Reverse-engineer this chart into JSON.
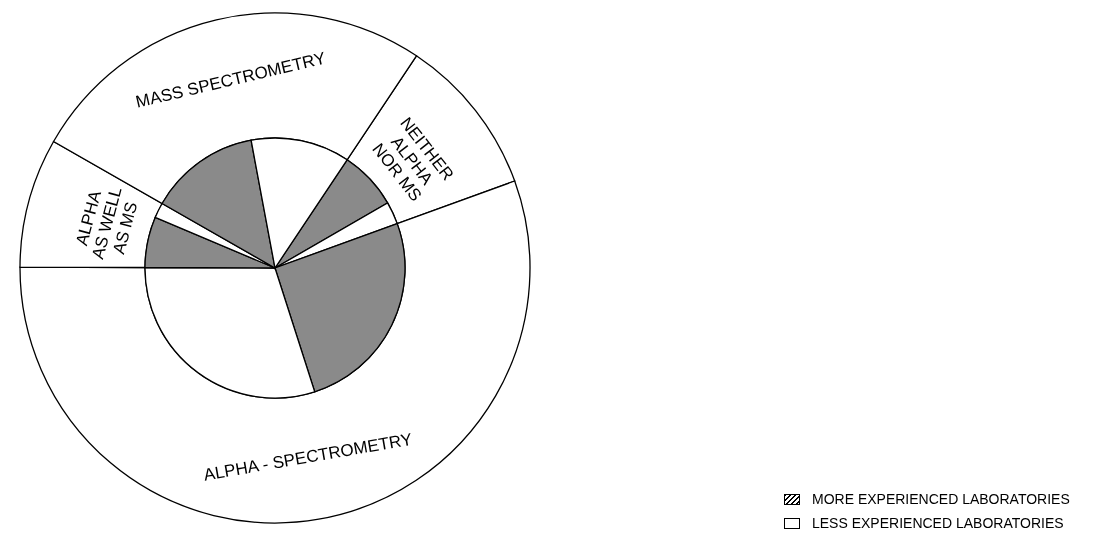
{
  "chart_data": [
    {
      "type": "donut",
      "categories": [
        "NEITHER ALPHA NOR MS",
        "ALPHA - SPECTROMETRY",
        "ALPHA AS WELL AS MS",
        "MASS SPECTROMETRY"
      ],
      "values": [
        10.1,
        55.6,
        8.2,
        26.1
      ],
      "colors": [
        "#ffffff",
        "#ffffff",
        "#ffffff",
        "#ffffff"
      ]
    },
    {
      "type": "pie",
      "categories": [
        null,
        null,
        null,
        null,
        null,
        null,
        null,
        null
      ],
      "annotations": [
        "MORE EXPERIENCED LABORATORIES",
        "LESS EXPERIENCED LABORATORIES"
      ],
      "values": [
        7.3,
        2.8,
        25.6,
        30.0,
        6.3,
        1.9,
        13.8,
        12.3
      ],
      "colors": [
        "#8a8a8a",
        "#ffffff",
        "#8a8a8a",
        "#ffffff",
        "#8a8a8a",
        "#ffffff",
        "#8a8a8a",
        "#ffffff"
      ]
    }
  ]
}
